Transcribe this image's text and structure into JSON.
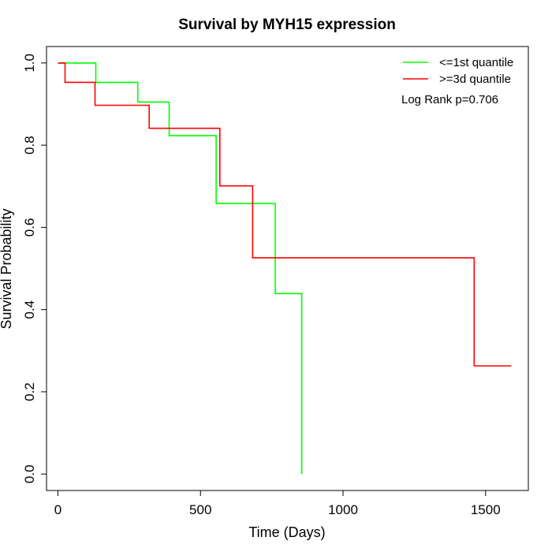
{
  "chart_data": {
    "type": "line",
    "title": "Survival by MYH15 expression",
    "xlabel": "Time (Days)",
    "ylabel": "Survival Probability",
    "xlim": [
      -40,
      1650
    ],
    "ylim": [
      -0.04,
      1.04
    ],
    "x_ticks": [
      0,
      500,
      1000,
      1500
    ],
    "y_ticks": [
      0.0,
      0.2,
      0.4,
      0.6,
      0.8,
      1.0
    ],
    "grid": false,
    "legend_position": "top-right",
    "annotation": "Log Rank p=0.706",
    "series": [
      {
        "name": "<=1st quantile",
        "color": "#00ff00",
        "x": [
          0,
          133,
          133,
          280,
          280,
          390,
          390,
          555,
          555,
          762,
          762,
          855,
          855
        ],
        "y": [
          1.0,
          1.0,
          0.953,
          0.953,
          0.905,
          0.905,
          0.823,
          0.823,
          0.658,
          0.658,
          0.439,
          0.439,
          0.0
        ]
      },
      {
        "name": ">=3d quantile",
        "color": "#ff0000",
        "x": [
          0,
          25,
          25,
          130,
          130,
          320,
          320,
          568,
          568,
          683,
          683,
          1460,
          1460,
          1590
        ],
        "y": [
          1.0,
          1.0,
          0.953,
          0.953,
          0.897,
          0.897,
          0.841,
          0.841,
          0.701,
          0.701,
          0.526,
          0.526,
          0.263,
          0.263
        ]
      }
    ]
  }
}
